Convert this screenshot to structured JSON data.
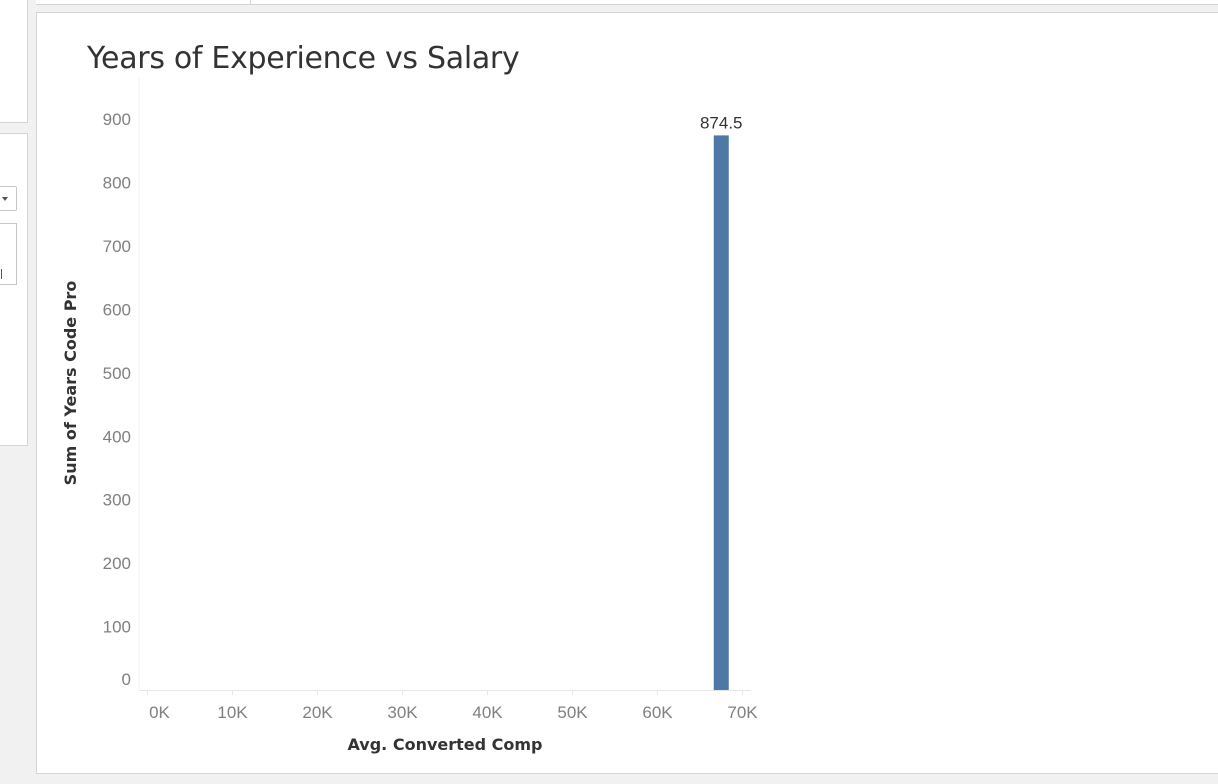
{
  "sheet": {
    "title": "Years of Experience vs Salary"
  },
  "chart_data": {
    "type": "bar",
    "title": "Years of Experience vs Salary",
    "xlabel": "Avg. Converted Comp",
    "ylabel": "Sum of Years Code Pro",
    "x_ticks": [
      "0K",
      "10K",
      "20K",
      "30K",
      "40K",
      "50K",
      "60K",
      "70K"
    ],
    "y_ticks": [
      "0",
      "100",
      "200",
      "300",
      "400",
      "500",
      "600",
      "700",
      "800",
      "900"
    ],
    "xlim": [
      -1000,
      71000
    ],
    "ylim": [
      0,
      965
    ],
    "series": [
      {
        "x": 67500,
        "value": 874.5,
        "label": "874.5"
      }
    ],
    "bar_color": "#4e79a7",
    "grid": false
  }
}
